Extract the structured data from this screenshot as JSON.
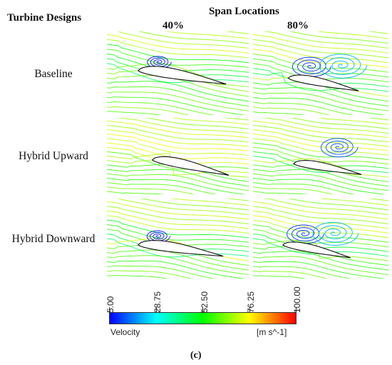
{
  "header": {
    "designs_title": "Turbine Designs",
    "span_title": "Span Locations",
    "columns": [
      "40%",
      "80%"
    ]
  },
  "rows": [
    {
      "label": "Baseline"
    },
    {
      "label": "Hybrid Upward"
    },
    {
      "label": "Hybrid Downward"
    }
  ],
  "colorbar": {
    "ticks": [
      "5.00",
      "28.75",
      "52.50",
      "76.25",
      "100.00"
    ],
    "variable": "Velocity",
    "unit": "[m s^-1]",
    "colors": [
      "#0000ff",
      "#00ffff",
      "#00ff00",
      "#ffff00",
      "#ff0000"
    ]
  },
  "caption": "(c)"
}
